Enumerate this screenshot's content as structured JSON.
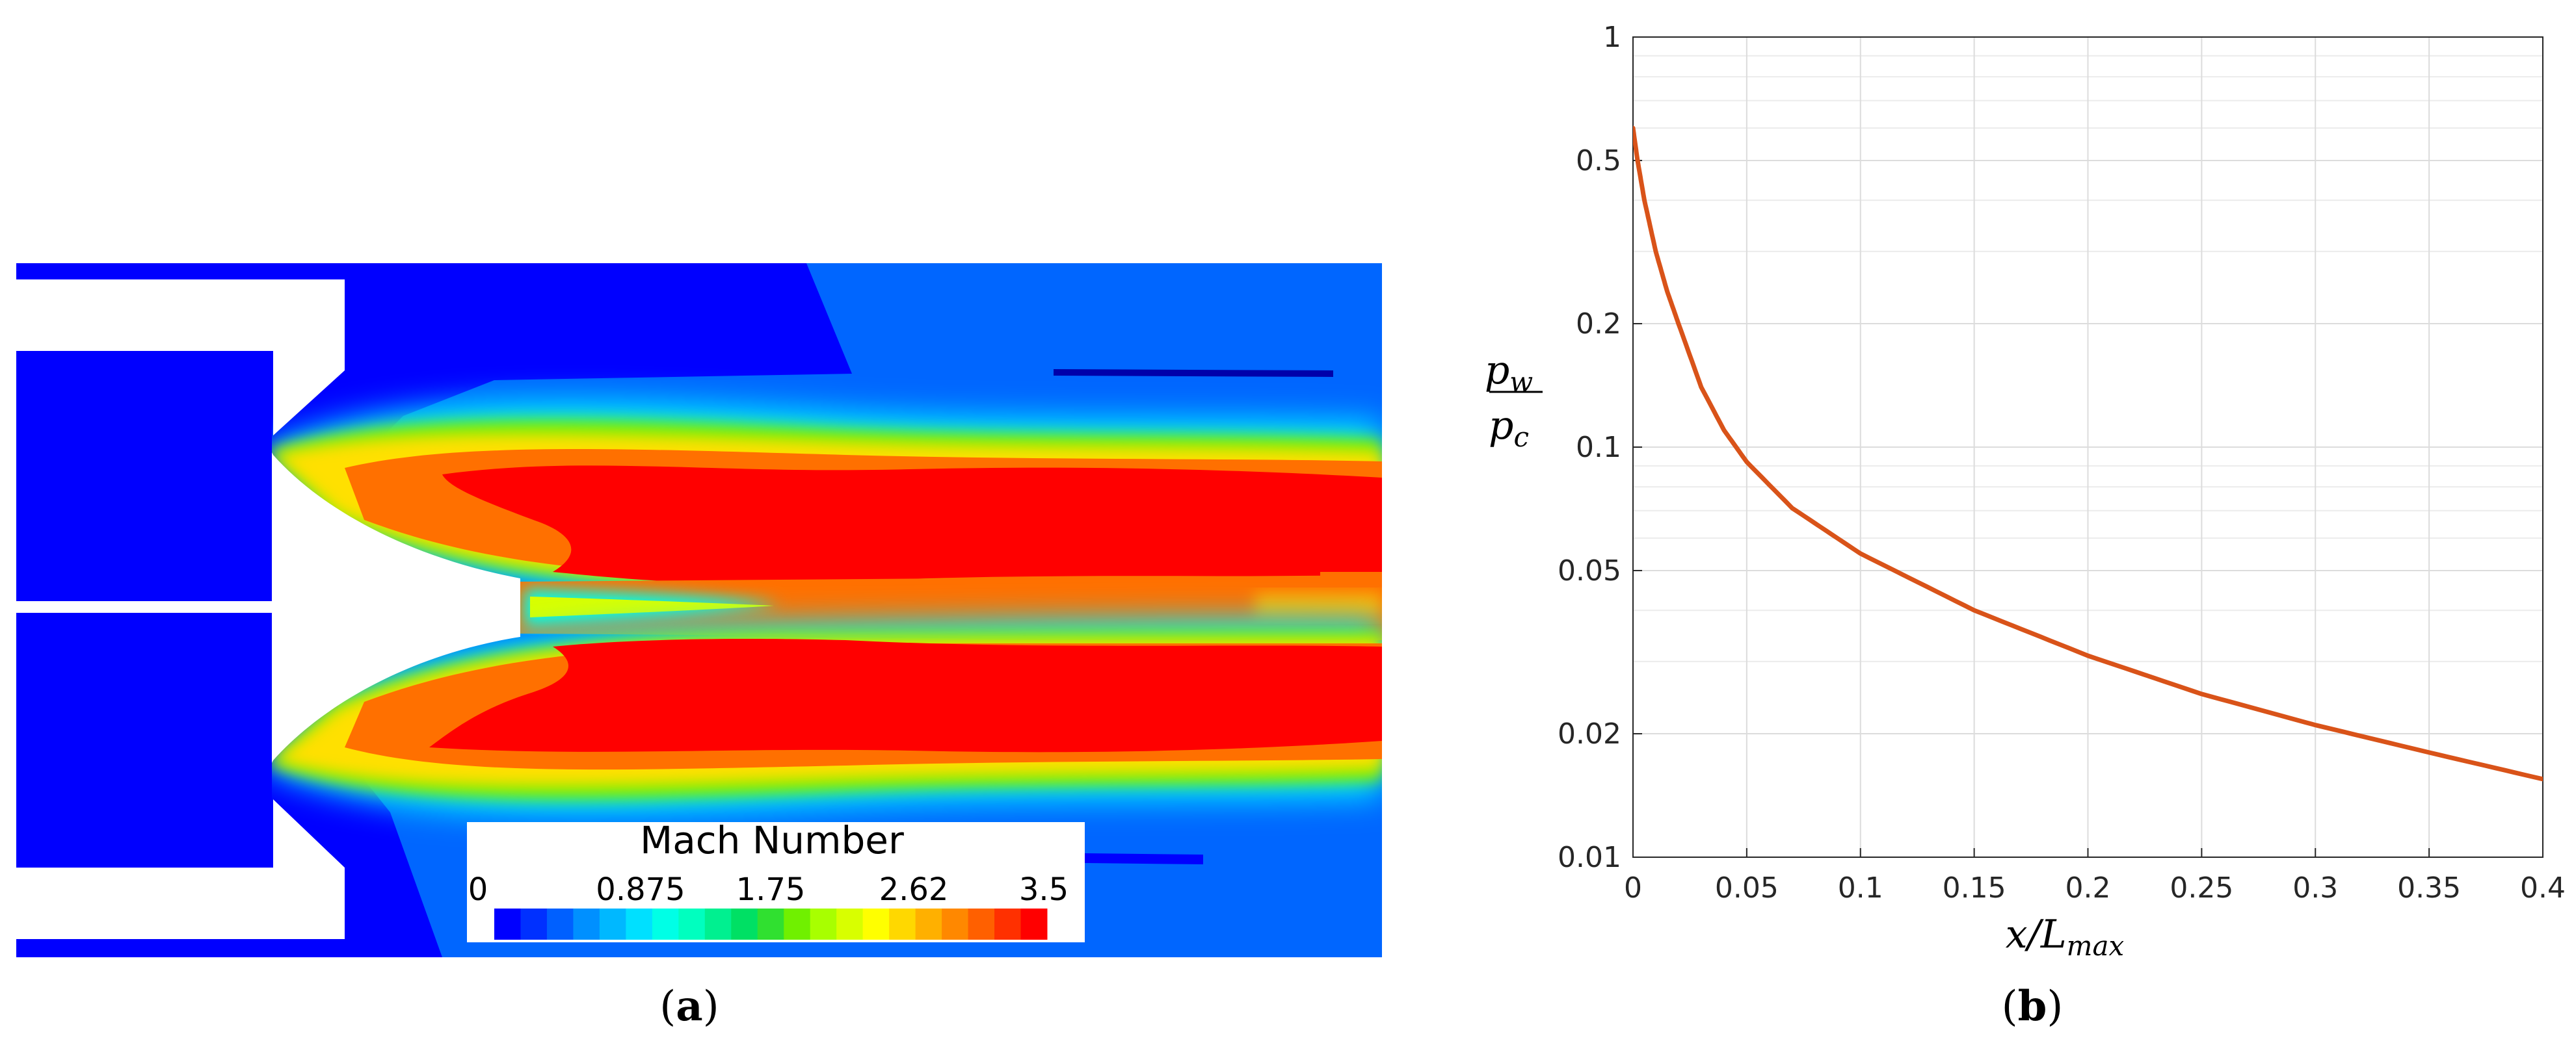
{
  "panel_a": {
    "label_open": "(",
    "label_letter": "a",
    "label_close": ")",
    "colorbar": {
      "title": "Mach Number",
      "tick_labels": [
        "0",
        "0.875",
        "1.75",
        "2.62",
        "3.5"
      ],
      "colors": [
        "#0000ff",
        "#0030ff",
        "#0060ff",
        "#0090ff",
        "#00b8ff",
        "#00e0ff",
        "#00ffe6",
        "#00ffbf",
        "#00f090",
        "#00e064",
        "#30e030",
        "#70f000",
        "#a8ff00",
        "#d8ff00",
        "#ffff00",
        "#ffd800",
        "#ffb000",
        "#ff8800",
        "#ff6000",
        "#ff3000",
        "#ff0000"
      ]
    },
    "field_colors": {
      "blue": "#0000ff",
      "light_blue": "#0066ff",
      "red": "#ff0000",
      "orange": "#ff7000"
    }
  },
  "panel_b": {
    "label_open": "(",
    "label_letter": "b",
    "label_close": ")",
    "ylabel_numerator": "p",
    "ylabel_numerator_sub": "w",
    "ylabel_denominator": "p",
    "ylabel_denominator_sub": "c",
    "xlabel_main": "x/L",
    "xlabel_sub": "max"
  },
  "chart_data": {
    "type": "line",
    "xlim": [
      0,
      0.4
    ],
    "ylim": [
      0.01,
      1
    ],
    "yscale": "log",
    "grid": true,
    "x_tick_labels": [
      "0",
      "0.05",
      "0.1",
      "0.15",
      "0.2",
      "0.25",
      "0.3",
      "0.35",
      "0.4"
    ],
    "y_ticks": [
      0.01,
      0.02,
      0.05,
      0.1,
      0.2,
      0.5,
      1
    ],
    "y_tick_labels": [
      "0.01",
      "0.02",
      "0.05",
      "0.1",
      "0.2",
      "0.5",
      "1"
    ],
    "series": [
      {
        "color": "#d95319",
        "x": [
          0,
          0.002,
          0.005,
          0.01,
          0.015,
          0.02,
          0.03,
          0.04,
          0.05,
          0.07,
          0.1,
          0.15,
          0.2,
          0.25,
          0.3,
          0.35,
          0.4
        ],
        "y": [
          0.6,
          0.5,
          0.4,
          0.3,
          0.24,
          0.2,
          0.14,
          0.11,
          0.092,
          0.071,
          0.055,
          0.04,
          0.031,
          0.025,
          0.021,
          0.018,
          0.0155
        ]
      }
    ]
  }
}
